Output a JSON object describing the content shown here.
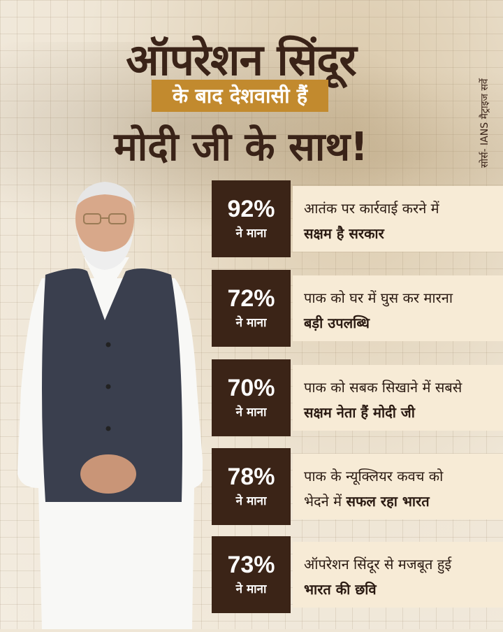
{
  "header": {
    "title_line1": "ऑपरेशन सिंदूर",
    "subtitle": "के बाद देशवासी हैं",
    "title_line2": "मोदी जी के साथ!",
    "source": "सोर्स- IANS मैट्राइज सर्वे"
  },
  "stats": [
    {
      "percent": "92%",
      "label": "ने माना",
      "text_regular": "आतंक पर कार्रवाई करने में",
      "text_bold": "सक्षम है सरकार"
    },
    {
      "percent": "72%",
      "label": "ने माना",
      "text_regular": "पाक को घर में घुस कर मारना",
      "text_bold": "बड़ी उपलब्धि"
    },
    {
      "percent": "70%",
      "label": "ने माना",
      "text_regular": "पाक को सबक सिखाने में सबसे",
      "text_bold": "सक्षम नेता हैं मोदी जी"
    },
    {
      "percent": "78%",
      "label": "ने माना",
      "text_regular": "पाक के न्यूक्लियर कवच को",
      "text_regular2": "भेदने में ",
      "text_bold": "सफल रहा भारत"
    },
    {
      "percent": "73%",
      "label": "ने माना",
      "text_regular": "ऑपरेशन सिंदूर से मजबूत हुई",
      "text_bold": "भारत की छवि"
    }
  ],
  "colors": {
    "dark_brown": "#3b2417",
    "gold": "#c28a2e",
    "cream": "#f7ebd6"
  }
}
